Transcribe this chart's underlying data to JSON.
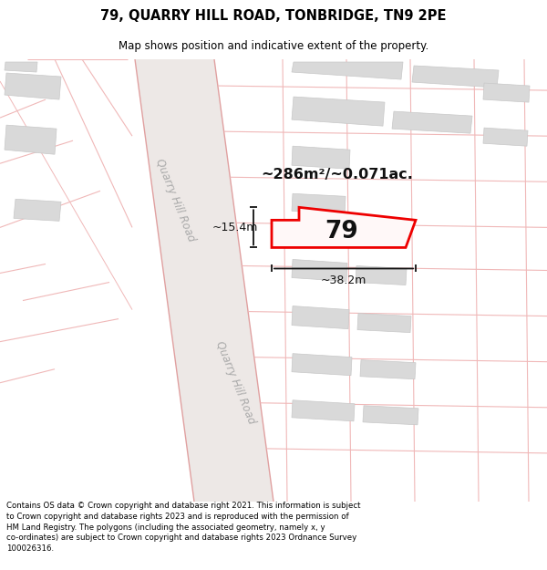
{
  "title": "79, QUARRY HILL ROAD, TONBRIDGE, TN9 2PE",
  "subtitle": "Map shows position and indicative extent of the property.",
  "footer": "Contains OS data © Crown copyright and database right 2021. This information is subject\nto Crown copyright and database rights 2023 and is reproduced with the permission of\nHM Land Registry. The polygons (including the associated geometry, namely x, y\nco-ordinates) are subject to Crown copyright and database rights 2023 Ordnance Survey\n100026316.",
  "area_label": "~286m²/~0.071ac.",
  "number_label": "79",
  "dim_width": "~38.2m",
  "dim_height": "~15.4m",
  "road_label": "Quarry Hill Road",
  "map_bg": "#f5f4f2",
  "road_fill": "#ede8e6",
  "road_line": "#e0a0a0",
  "lot_line": "#f0b8b8",
  "building_fill": "#d9d9d9",
  "building_edge": "#c8c8c8",
  "red": "#ee0000",
  "black": "#111111",
  "road_text": "#aaaaaa",
  "white": "#ffffff"
}
